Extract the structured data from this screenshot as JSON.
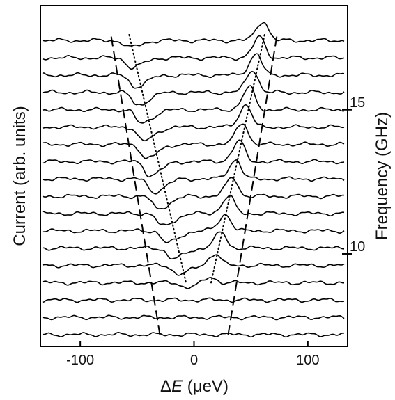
{
  "chart_data": {
    "type": "line",
    "title": "",
    "xlabel_symbol": "Δ",
    "xlabel_var": "E",
    "xlabel_unit": " (μeV)",
    "ylabel": "Current  (arb. units)",
    "y2label": "Frequency (GHz)",
    "xlim": [
      -135,
      135
    ],
    "flim": [
      7.2,
      17.6
    ],
    "x_ticks": [
      -100,
      0,
      100
    ],
    "x_tick_labels": [
      "-100",
      "0",
      "100"
    ],
    "y2_ticks": [
      10,
      15
    ],
    "y2_tick_labels": [
      "10",
      "15"
    ],
    "grid": false,
    "legend": "none",
    "series": [
      {
        "f": 7.2,
        "dip": null,
        "dip_depth": 0,
        "peak": null,
        "peak_height": 0
      },
      {
        "f": 7.8,
        "dip": null,
        "dip_depth": 0,
        "peak": null,
        "peak_height": 0
      },
      {
        "f": 8.4,
        "dip": null,
        "dip_depth": 0,
        "peak": null,
        "peak_height": 0
      },
      {
        "f": 9.0,
        "dip": -7,
        "dip_depth": 0.45,
        "peak": 15,
        "peak_height": 0.6
      },
      {
        "f": 9.6,
        "dip": -14,
        "dip_depth": 0.9,
        "peak": 19,
        "peak_height": 1.2
      },
      {
        "f": 10.2,
        "dip": -19,
        "dip_depth": 1.1,
        "peak": 24,
        "peak_height": 1.6
      },
      {
        "f": 10.8,
        "dip": -24,
        "dip_depth": 1.25,
        "peak": 28,
        "peak_height": 1.7
      },
      {
        "f": 11.4,
        "dip": -28,
        "dip_depth": 1.3,
        "peak": 31,
        "peak_height": 1.8
      },
      {
        "f": 12.0,
        "dip": -32,
        "dip_depth": 1.3,
        "peak": 34,
        "peak_height": 1.9
      },
      {
        "f": 12.6,
        "dip": -36,
        "dip_depth": 1.35,
        "peak": 37,
        "peak_height": 2.0
      },
      {
        "f": 13.2,
        "dip": -39,
        "dip_depth": 1.4,
        "peak": 40,
        "peak_height": 2.1
      },
      {
        "f": 13.8,
        "dip": -42,
        "dip_depth": 1.45,
        "peak": 43,
        "peak_height": 2.2
      },
      {
        "f": 14.4,
        "dip": -45,
        "dip_depth": 1.45,
        "peak": 46,
        "peak_height": 2.3
      },
      {
        "f": 15.0,
        "dip": -47,
        "dip_depth": 1.4,
        "peak": 49,
        "peak_height": 2.3
      },
      {
        "f": 15.6,
        "dip": -50,
        "dip_depth": 1.3,
        "peak": 52,
        "peak_height": 2.3
      },
      {
        "f": 16.2,
        "dip": -52,
        "dip_depth": 1.2,
        "peak": 55,
        "peak_height": 2.2
      },
      {
        "f": 16.8,
        "dip": -55,
        "dip_depth": 1.0,
        "peak": 58,
        "peak_height": 2.1
      },
      {
        "f": 17.4,
        "dip": -57,
        "dip_depth": 0.7,
        "peak": 61,
        "peak_height": 2.0
      }
    ],
    "dashed_lines": [
      {
        "points": [
          [
            -30,
            7.2
          ],
          [
            -73,
            17.6
          ]
        ]
      },
      {
        "points": [
          [
            30,
            7.2
          ],
          [
            73,
            17.6
          ]
        ]
      }
    ],
    "dotted_lines": [
      {
        "points": [
          [
            -57,
            17.6
          ],
          [
            -7,
            9.0
          ]
        ]
      },
      {
        "points": [
          [
            15,
            9.0
          ],
          [
            62,
            17.6
          ]
        ]
      }
    ]
  }
}
